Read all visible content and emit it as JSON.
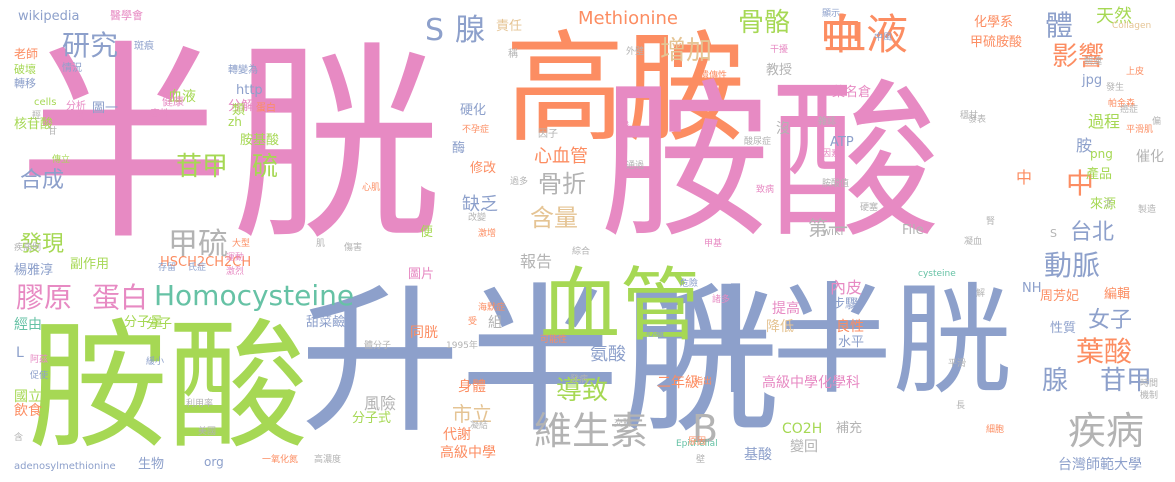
{
  "palette": {
    "pink": "#e78ac3",
    "green": "#a6d854",
    "blue": "#8da0cb",
    "orange": "#fc8d62",
    "teal": "#66c2a5",
    "yellow": "#e5c494",
    "gold": "#ffd92f",
    "gray": "#b3b3b3"
  },
  "words": [
    "半胱",
    "高胺",
    "胺酸",
    "升半胱",
    "胺酸",
    "血管",
    "升半胱",
    "血液",
    "中",
    "S",
    "腺",
    "研究",
    "增加",
    "骨骼",
    "體",
    "影響",
    "天然",
    "Methionine",
    "葉酸",
    "中",
    "心血管",
    "苷甲",
    "硫",
    "骨折",
    "甲硫",
    "含量",
    "Homocysteine",
    "膠原",
    "蛋白",
    "維生素",
    "B",
    "疾病",
    "動脈",
    "台北",
    "腺",
    "苷甲",
    "發現",
    "合成",
    "導致",
    "市立",
    "女子",
    "第一",
    "報告",
    "缺乏",
    "高級中學化學科",
    "二年級",
    "身體",
    "代謝",
    "高級中學",
    "台灣師範大學",
    "基酸",
    "變回",
    "CO2H",
    "wikipedia",
    "醫學會",
    "責任",
    "顯示",
    "Collagen",
    "化學系",
    "甲硫胺酸",
    "過程",
    "胺",
    "中",
    "催化",
    "產品",
    "來源",
    "編輯",
    "周芳妃",
    "性質",
    "步驟",
    "內皮",
    "良性",
    "水平",
    "降低",
    "提高",
    "氨酸",
    "組",
    "同胱",
    "風險",
    "分子式",
    "分子量",
    "甜菜鹼",
    "副作用",
    "楊雅淳",
    "經由",
    "L",
    "飲食",
    "國立",
    "生物",
    "org",
    "adenosylmethionine",
    "http",
    "分解為",
    "zh",
    "胺基酸",
    "ATP",
    "png",
    "jpg",
    "葉名倉",
    "教授",
    "修改",
    "酶",
    "硬化",
    "HSCH2CH2CH",
    "wiki",
    "File",
    "圖片",
    "便",
    "分子",
    "血液",
    "類",
    "圖一",
    "核苷酸",
    "老師",
    "破壞",
    "轉移",
    "cells",
    "cysteine",
    "沒",
    "補充",
    "Epithelial",
    "NH",
    "S",
    "平滑肌",
    "帕金森",
    "上皮",
    "關連",
    "遺傳性",
    "稱",
    "外壁",
    "轉變為",
    "情況",
    "斑痕",
    "分析",
    "減少",
    "健康",
    "毒性",
    "蛋白",
    "癌症",
    "因子",
    "酸尿症",
    "雜誌",
    "因素",
    "酸",
    "心肌",
    "致病",
    "胺酸值",
    "存留",
    "大型",
    "運動",
    "激烈",
    "氏症",
    "肌",
    "傷害",
    "危險",
    "諸多",
    "可能性",
    "海默症",
    "體分子",
    "1995年",
    "受",
    "心臟",
    "指出",
    "原因",
    "發病",
    "利用率",
    "美國",
    "凝結",
    "交聯",
    "壁",
    "一氧化氮",
    "高濃度",
    "時間",
    "機制",
    "細胞",
    "長",
    "凝血",
    "製造",
    "疾病例",
    "阿茲",
    "促使",
    "含",
    "不孕症",
    "傳立",
    "硬塞",
    "改變",
    "激增",
    "緩小",
    "過多",
    "通過",
    "綜合",
    "甲基",
    "解",
    "腎",
    "偏",
    "發表",
    "中風",
    "干擾",
    "平滑",
    "發生",
    "穩甘",
    "之",
    "羥",
    "甘",
    "一",
    "間"
  ]
}
